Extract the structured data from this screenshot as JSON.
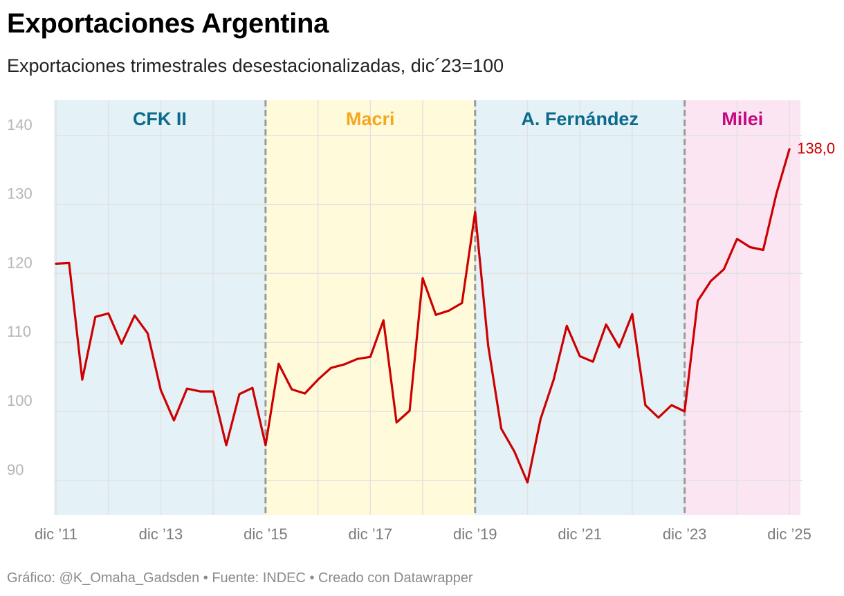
{
  "title": "Exportaciones Argentina",
  "subtitle": "Exportaciones trimestrales desestacionalizadas, dic´23=100",
  "footer": "Gráfico: @K_Omaha_Gadsden • Fuente: INDEC • Creado con Datawrapper",
  "chart_data": {
    "type": "line",
    "title": "Exportaciones Argentina",
    "subtitle": "Exportaciones trimestrales desestacionalizadas, dic´23=100",
    "x_start": "dic ’11",
    "x_unit": "quarter",
    "ylim": [
      85,
      145
    ],
    "yticks": [
      90,
      100,
      110,
      120,
      130,
      140
    ],
    "grid": true,
    "xticks": [
      {
        "quarter": 0,
        "label": "dic ’11"
      },
      {
        "quarter": 8,
        "label": "dic ’13"
      },
      {
        "quarter": 16,
        "label": "dic ’15"
      },
      {
        "quarter": 24,
        "label": "dic ’17"
      },
      {
        "quarter": 32,
        "label": "dic ’19"
      },
      {
        "quarter": 40,
        "label": "dic ’21"
      },
      {
        "quarter": 48,
        "label": "dic ’23"
      },
      {
        "quarter": 56,
        "label": "dic ’25"
      }
    ],
    "periods": [
      {
        "name": "CFK II",
        "start": 0,
        "end": 16,
        "color": "#e4f1f6",
        "label_color": "#0b6b8c"
      },
      {
        "name": "Macri",
        "start": 16,
        "end": 32,
        "color": "#fffbda",
        "label_color": "#f5a623"
      },
      {
        "name": "A. Fernández",
        "start": 32,
        "end": 48,
        "color": "#e4f1f6",
        "label_color": "#0b6b8c"
      },
      {
        "name": "Milei",
        "start": 48,
        "end": 57,
        "color": "#fbe5f3",
        "label_color": "#c4087e"
      }
    ],
    "series": [
      {
        "color": "#cc0000",
        "values": [
          121.4,
          121.5,
          104.6,
          113.7,
          114.2,
          109.8,
          113.9,
          111.3,
          103.1,
          98.7,
          103.3,
          102.9,
          102.9,
          95.1,
          102.5,
          103.4,
          95.1,
          106.9,
          103.2,
          102.6,
          104.6,
          106.3,
          106.8,
          107.6,
          107.9,
          113.2,
          98.4,
          100.1,
          119.3,
          114.0,
          114.6,
          115.7,
          128.9,
          109.5,
          97.5,
          94.2,
          89.7,
          98.9,
          104.6,
          112.4,
          108.0,
          107.2,
          112.6,
          109.3,
          114.1,
          100.9,
          99.1,
          100.9,
          100.0,
          116.0,
          118.9,
          120.6,
          125.0,
          123.8,
          123.4,
          131.5,
          138.0
        ],
        "end_label": "138,0"
      }
    ]
  }
}
